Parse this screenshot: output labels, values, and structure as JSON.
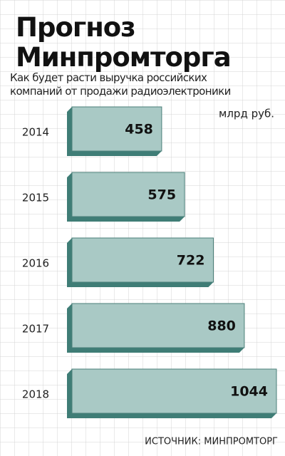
{
  "chart_data": {
    "type": "bar",
    "orientation": "horizontal",
    "title": "Прогноз Минпромторга",
    "subtitle": "Как будет расти выручка российских компаний от продажи радиоэлектроники",
    "unit_label": "млрд руб.",
    "source": "ИСТОЧНИК: МИНПРОМТОРГ",
    "categories": [
      "2014",
      "2015",
      "2016",
      "2017",
      "2018"
    ],
    "values": [
      458,
      575,
      722,
      880,
      1044
    ],
    "color": "#a9c9c5",
    "side_color": "#3f7d76"
  }
}
